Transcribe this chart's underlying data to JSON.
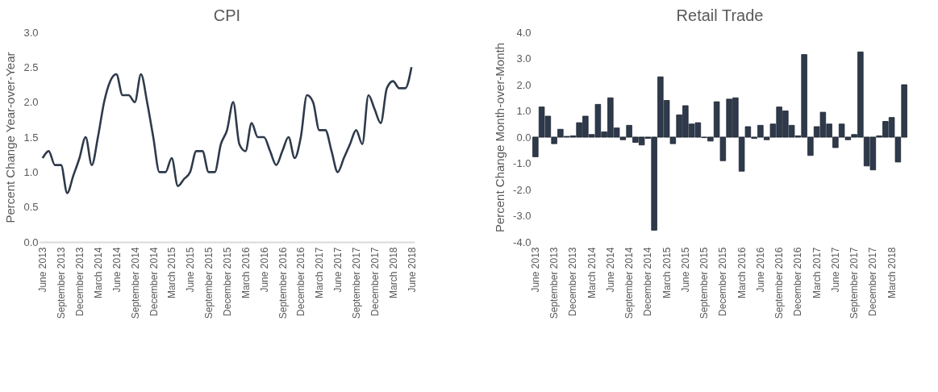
{
  "chart_data": [
    {
      "type": "line",
      "title": "CPI",
      "ylabel": "Percent Change Year-over-Year",
      "categories": [
        "June 2013",
        null,
        null,
        "September 2013",
        null,
        null,
        "December 2013",
        null,
        null,
        "March 2014",
        null,
        null,
        "June 2014",
        null,
        null,
        "September 2014",
        null,
        null,
        "December 2014",
        null,
        null,
        "March 2015",
        null,
        null,
        "June 2015",
        null,
        null,
        "September 2015",
        null,
        null,
        "December 2015",
        null,
        null,
        "March 2016",
        null,
        null,
        "June 2016",
        null,
        null,
        "September 2016",
        null,
        null,
        "December 2016",
        null,
        null,
        "March 2017",
        null,
        null,
        "June 2017",
        null,
        null,
        "September 2017",
        null,
        null,
        "December 2017",
        null,
        null,
        "March 2018",
        null,
        null,
        "June 2018"
      ],
      "series": [
        {
          "color": "#2e3a4b",
          "values": [
            1.2,
            1.3,
            1.1,
            1.1,
            0.7,
            0.95,
            1.2,
            1.5,
            1.1,
            1.5,
            2.0,
            2.3,
            2.4,
            2.1,
            2.1,
            2.0,
            2.4,
            2.0,
            1.5,
            1.0,
            1.0,
            1.2,
            0.8,
            0.9,
            1.0,
            1.3,
            1.3,
            1.0,
            1.0,
            1.4,
            1.6,
            2.0,
            1.4,
            1.3,
            1.7,
            1.5,
            1.5,
            1.3,
            1.1,
            1.3,
            1.5,
            1.2,
            1.5,
            2.1,
            2.0,
            1.6,
            1.6,
            1.3,
            1.0,
            1.2,
            1.4,
            1.6,
            1.4,
            2.1,
            1.9,
            1.7,
            2.2,
            2.3,
            2.2,
            2.2,
            2.5
          ]
        }
      ],
      "ylim": [
        0,
        3
      ],
      "yticks": [
        {
          "value": 0,
          "label": "0.0"
        },
        {
          "value": 0.5,
          "label": "0.5"
        },
        {
          "value": 1,
          "label": "1.0"
        },
        {
          "value": 1.5,
          "label": "1.5"
        },
        {
          "value": 2,
          "label": "2.0"
        },
        {
          "value": 2.5,
          "label": "2.5"
        },
        {
          "value": 3,
          "label": "3.0"
        }
      ],
      "grid": false,
      "marker": "none",
      "line_style": "solid"
    },
    {
      "type": "bar",
      "title": "Retail Trade",
      "ylabel": "Percent Change Month-over-Month",
      "categories": [
        "June 2013",
        null,
        null,
        "September 2013",
        null,
        null,
        "December 2013",
        null,
        null,
        "March 2014",
        null,
        null,
        "June 2014",
        null,
        null,
        "September 2014",
        null,
        null,
        "December 2014",
        null,
        null,
        "March 2015",
        null,
        null,
        "June 2015",
        null,
        null,
        "September 2015",
        null,
        null,
        "December 2015",
        null,
        null,
        "March 2016",
        null,
        null,
        "June 2016",
        null,
        null,
        "September 2016",
        null,
        null,
        "December 2016",
        null,
        null,
        "March 2017",
        null,
        null,
        "June 2017",
        null,
        null,
        "September 2017",
        null,
        null,
        "December 2017",
        null,
        null,
        "March 2018",
        null,
        null
      ],
      "series": [
        {
          "color": "#2e3a4b",
          "values": [
            -0.75,
            1.15,
            0.8,
            -0.25,
            0.3,
            0.03,
            0.05,
            0.55,
            0.8,
            0.1,
            1.25,
            0.2,
            1.5,
            0.35,
            -0.1,
            0.45,
            -0.2,
            -0.3,
            -0.05,
            -3.55,
            2.3,
            1.4,
            -0.25,
            0.85,
            1.2,
            0.5,
            0.55,
            -0.02,
            -0.15,
            1.35,
            -0.9,
            1.45,
            1.5,
            -1.3,
            0.4,
            -0.05,
            0.45,
            -0.1,
            0.5,
            1.15,
            1.0,
            0.45,
            0.05,
            3.15,
            -0.7,
            0.4,
            0.95,
            0.5,
            -0.4,
            0.5,
            -0.1,
            0.1,
            3.25,
            -1.1,
            -1.25,
            0.05,
            0.6,
            0.75,
            -0.95,
            2.0
          ]
        }
      ],
      "ylim": [
        -4,
        4
      ],
      "yticks": [
        {
          "value": -4,
          "label": "-4.0"
        },
        {
          "value": -3,
          "label": "-3.0"
        },
        {
          "value": -2,
          "label": "-2.0"
        },
        {
          "value": -1,
          "label": "-1.0"
        },
        {
          "value": 0,
          "label": "0.0"
        },
        {
          "value": 1,
          "label": "1.0"
        },
        {
          "value": 2,
          "label": "2.0"
        },
        {
          "value": 3,
          "label": "3.0"
        },
        {
          "value": 4,
          "label": "4.0"
        }
      ],
      "tick_labels": true
    }
  ]
}
